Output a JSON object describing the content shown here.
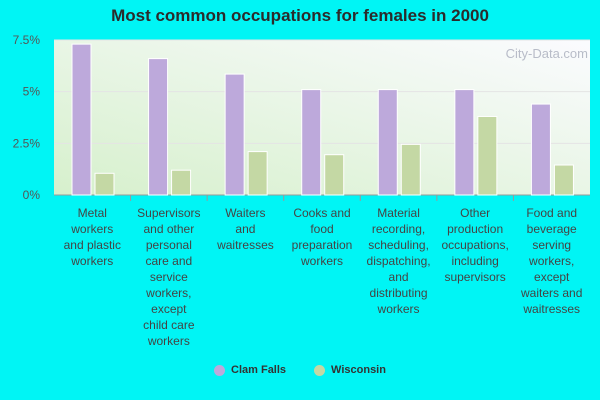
{
  "chart_data": {
    "type": "bar",
    "title": "Most common occupations for females in 2000",
    "categories": [
      "Metal workers and plastic workers",
      "Supervisors and other personal care and service workers, except child care workers",
      "Waiters and waitresses",
      "Cooks and food preparation workers",
      "Material recording, scheduling, dispatching, and distributing workers",
      "Other production occupations, including supervisors",
      "Food and beverage serving workers, except waiters and waitresses"
    ],
    "category_lines": [
      [
        "Metal",
        "workers",
        "and plastic",
        "workers"
      ],
      [
        "Supervisors",
        "and other",
        "personal",
        "care and",
        "service",
        "workers,",
        "except",
        "child care",
        "workers"
      ],
      [
        "Waiters",
        "and",
        "waitresses"
      ],
      [
        "Cooks and",
        "food",
        "preparation",
        "workers"
      ],
      [
        "Material",
        "recording,",
        "scheduling,",
        "dispatching,",
        "and",
        "distributing",
        "workers"
      ],
      [
        "Other",
        "production",
        "occupations,",
        "including",
        "supervisors"
      ],
      [
        "Food and",
        "beverage",
        "serving",
        "workers,",
        "except",
        "waiters and",
        "waitresses"
      ]
    ],
    "series": [
      {
        "name": "Clam Falls",
        "color": "#bda9db",
        "values": [
          7.3,
          6.6,
          5.85,
          5.1,
          5.1,
          5.1,
          4.4
        ]
      },
      {
        "name": "Wisconsin",
        "color": "#c4d8a4",
        "values": [
          1.05,
          1.2,
          2.1,
          1.95,
          2.45,
          3.8,
          1.45
        ]
      }
    ],
    "ylim": [
      0,
      7.5
    ],
    "yticks": [
      0,
      2.5,
      5,
      7.5
    ],
    "ytick_labels": [
      "0%",
      "2.5%",
      "5%",
      "7.5%"
    ],
    "grid": true,
    "legend_position": "bottom"
  },
  "watermark": "City-Data.com"
}
